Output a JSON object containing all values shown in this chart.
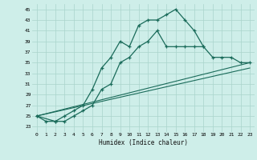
{
  "xlabel": "Humidex (Indice chaleur)",
  "bg_color": "#ceeee9",
  "grid_color": "#aad4cc",
  "line_color": "#1a6b5a",
  "xlim": [
    -0.5,
    23.5
  ],
  "ylim": [
    22,
    46
  ],
  "yticks": [
    23,
    25,
    27,
    29,
    31,
    33,
    35,
    37,
    39,
    41,
    43,
    45
  ],
  "xticks": [
    0,
    1,
    2,
    3,
    4,
    5,
    6,
    7,
    8,
    9,
    10,
    11,
    12,
    13,
    14,
    15,
    16,
    17,
    18,
    19,
    20,
    21,
    22,
    23
  ],
  "series1_x": [
    0,
    1,
    2,
    3,
    4,
    5,
    6,
    7,
    8,
    9,
    10,
    11,
    12,
    13,
    14,
    15,
    16,
    17,
    18
  ],
  "series1_y": [
    25,
    24,
    24,
    25,
    26,
    27,
    30,
    34,
    36,
    39,
    38,
    42,
    43,
    43,
    44,
    45,
    43,
    41,
    38
  ],
  "series2_x": [
    0,
    2,
    3,
    4,
    5,
    6,
    7,
    8,
    9,
    10,
    11,
    12,
    13,
    14,
    15,
    16,
    17,
    18,
    19,
    20,
    21,
    22,
    23
  ],
  "series2_y": [
    25,
    24,
    24,
    25,
    26,
    27,
    30,
    31,
    35,
    36,
    38,
    39,
    41,
    38,
    38,
    38,
    38,
    38,
    36,
    36,
    36,
    35,
    35
  ],
  "line1_x": [
    0,
    23
  ],
  "line1_y": [
    25,
    35
  ],
  "line2_x": [
    0,
    23
  ],
  "line2_y": [
    25,
    34
  ]
}
